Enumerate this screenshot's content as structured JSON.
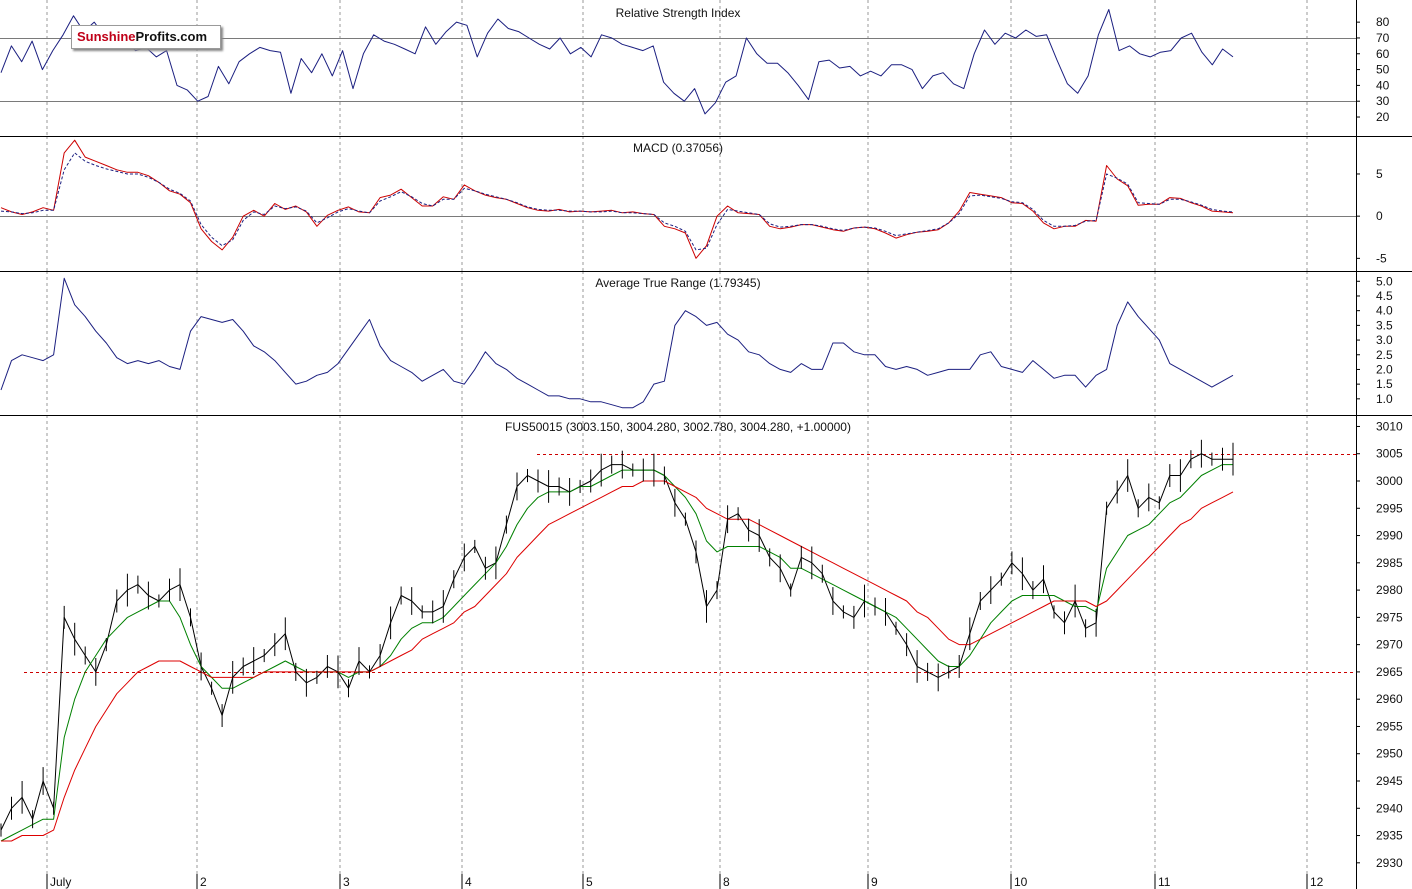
{
  "logo": {
    "part1": "Sunshine",
    "part2": "Profits.com"
  },
  "chart_data": [
    {
      "type": "line",
      "title": "Relative Strength Index",
      "x_labels": [
        "July",
        "2",
        "3",
        "4",
        "5",
        "8",
        "9",
        "10",
        "11",
        "12"
      ],
      "yticks": [
        80,
        70,
        60,
        50,
        40,
        30,
        20
      ],
      "ylim": [
        8,
        94
      ],
      "reference_lines": [
        70,
        30
      ],
      "series": [
        {
          "color": "#1b1f80",
          "values": [
            48,
            65,
            55,
            68,
            50,
            62,
            72,
            84,
            74,
            80,
            71,
            72,
            68,
            62,
            64,
            58,
            62,
            40,
            37,
            30,
            33,
            52,
            41,
            55,
            60,
            64,
            62,
            61,
            35,
            57,
            48,
            60,
            46,
            62,
            38,
            60,
            72,
            68,
            66,
            63,
            60,
            77,
            66,
            74,
            80,
            78,
            58,
            73,
            82,
            76,
            74,
            70,
            66,
            63,
            70,
            60,
            64,
            58,
            72,
            70,
            66,
            64,
            62,
            65,
            42,
            35,
            30,
            38,
            22,
            29,
            42,
            46,
            70,
            60,
            54,
            54,
            48,
            40,
            31,
            55,
            56,
            51,
            52,
            46,
            49,
            46,
            53,
            53,
            50,
            38,
            46,
            48,
            41,
            38,
            60,
            75,
            66,
            73,
            70,
            75,
            71,
            72,
            56,
            41,
            35,
            46,
            72,
            88,
            62,
            65,
            60,
            58,
            61,
            62,
            70,
            73,
            61,
            53,
            63,
            58
          ]
        }
      ]
    },
    {
      "type": "line",
      "title": "MACD (0.37056)",
      "x_labels": [
        "July",
        "2",
        "3",
        "4",
        "5",
        "8",
        "9",
        "10",
        "11",
        "12"
      ],
      "yticks": [
        5,
        0,
        -5
      ],
      "ylim": [
        -6.5,
        9.5
      ],
      "reference_lines": [
        0
      ],
      "series": [
        {
          "color": "#cc0000",
          "values": [
            1.0,
            0.5,
            0.2,
            0.5,
            1.0,
            0.7,
            7.5,
            9.0,
            7.0,
            6.5,
            6.0,
            5.5,
            5.2,
            5.2,
            4.8,
            4.0,
            3.0,
            2.6,
            1.6,
            -1.5,
            -3.0,
            -4.0,
            -2.5,
            0.0,
            0.7,
            0.0,
            1.5,
            0.8,
            1.2,
            0.5,
            -1.2,
            0.1,
            0.7,
            1.1,
            0.5,
            0.4,
            2.2,
            2.5,
            3.2,
            2.2,
            1.2,
            1.2,
            2.3,
            2.0,
            3.7,
            3.0,
            2.5,
            2.2,
            2.0,
            1.5,
            1.0,
            0.7,
            0.6,
            0.8,
            0.5,
            0.6,
            0.5,
            0.6,
            0.7,
            0.4,
            0.5,
            0.3,
            0.2,
            -1.2,
            -1.5,
            -2.0,
            -5.0,
            -3.5,
            0.0,
            1.2,
            0.4,
            0.3,
            0.2,
            -1.2,
            -1.5,
            -1.3,
            -1.0,
            -1.0,
            -1.3,
            -1.6,
            -1.8,
            -1.4,
            -1.3,
            -1.5,
            -2.0,
            -2.6,
            -2.2,
            -1.9,
            -1.8,
            -1.6,
            -0.8,
            0.6,
            2.8,
            2.6,
            2.4,
            2.2,
            1.6,
            1.5,
            0.6,
            -0.8,
            -1.5,
            -1.2,
            -1.2,
            -0.5,
            -0.6,
            6.0,
            4.4,
            3.6,
            1.3,
            1.4,
            1.4,
            2.2,
            2.1,
            1.6,
            1.2,
            0.6,
            0.5,
            0.4
          ]
        },
        {
          "color": "#1b1f80",
          "values": [
            0.6,
            0.5,
            0.3,
            0.4,
            0.7,
            0.7,
            5.5,
            7.5,
            6.5,
            6.0,
            5.6,
            5.3,
            5.0,
            5.0,
            4.6,
            4.0,
            3.2,
            2.7,
            1.8,
            -1.0,
            -2.5,
            -3.5,
            -2.8,
            -0.5,
            0.5,
            0.2,
            1.2,
            0.9,
            1.1,
            0.6,
            -0.8,
            -0.2,
            0.5,
            0.9,
            0.6,
            0.4,
            1.8,
            2.3,
            2.9,
            2.3,
            1.5,
            1.2,
            2.0,
            2.0,
            3.3,
            3.0,
            2.6,
            2.3,
            2.0,
            1.6,
            1.1,
            0.8,
            0.7,
            0.7,
            0.6,
            0.6,
            0.5,
            0.5,
            0.6,
            0.4,
            0.4,
            0.3,
            0.2,
            -0.8,
            -1.2,
            -1.8,
            -4.0,
            -3.8,
            -1.0,
            0.8,
            0.6,
            0.4,
            0.2,
            -0.9,
            -1.3,
            -1.2,
            -1.0,
            -1.0,
            -1.2,
            -1.5,
            -1.7,
            -1.4,
            -1.3,
            -1.4,
            -1.8,
            -2.3,
            -2.1,
            -1.9,
            -1.7,
            -1.5,
            -0.8,
            0.3,
            2.4,
            2.5,
            2.3,
            2.1,
            1.7,
            1.6,
            0.8,
            -0.5,
            -1.2,
            -1.2,
            -1.1,
            -0.6,
            -0.5,
            5.0,
            4.5,
            3.8,
            1.6,
            1.5,
            1.4,
            2.0,
            2.0,
            1.7,
            1.3,
            0.8,
            0.6,
            0.5
          ]
        }
      ]
    },
    {
      "type": "line",
      "title": "Average True Range (1.79345)",
      "x_labels": [
        "July",
        "2",
        "3",
        "4",
        "5",
        "8",
        "9",
        "10",
        "11",
        "12"
      ],
      "yticks": [
        5.0,
        4.5,
        4.0,
        3.5,
        3.0,
        2.5,
        2.0,
        1.5,
        1.0
      ],
      "ylim": [
        0.45,
        5.35
      ],
      "series": [
        {
          "color": "#1b1f80",
          "values": [
            1.3,
            2.3,
            2.5,
            2.4,
            2.3,
            2.5,
            5.1,
            4.2,
            3.8,
            3.3,
            2.9,
            2.4,
            2.2,
            2.3,
            2.2,
            2.3,
            2.1,
            2.0,
            3.3,
            3.8,
            3.7,
            3.6,
            3.7,
            3.3,
            2.8,
            2.6,
            2.3,
            1.9,
            1.5,
            1.6,
            1.8,
            1.9,
            2.2,
            2.7,
            3.2,
            3.7,
            2.8,
            2.3,
            2.1,
            1.9,
            1.6,
            1.8,
            2.0,
            1.6,
            1.5,
            2.0,
            2.6,
            2.2,
            2.0,
            1.7,
            1.5,
            1.3,
            1.1,
            1.1,
            1.0,
            1.0,
            0.9,
            0.9,
            0.8,
            0.7,
            0.7,
            0.9,
            1.5,
            1.6,
            3.5,
            4.0,
            3.8,
            3.5,
            3.6,
            3.2,
            3.0,
            2.6,
            2.5,
            2.2,
            2.0,
            1.9,
            2.2,
            2.0,
            2.0,
            2.9,
            2.9,
            2.6,
            2.5,
            2.5,
            2.1,
            2.0,
            2.1,
            2.0,
            1.8,
            1.9,
            2.0,
            2.0,
            2.0,
            2.5,
            2.6,
            2.1,
            2.0,
            1.9,
            2.3,
            2.0,
            1.7,
            1.8,
            1.8,
            1.4,
            1.8,
            2.0,
            3.5,
            4.3,
            3.8,
            3.4,
            3.0,
            2.2,
            2.0,
            1.8,
            1.6,
            1.4,
            1.6,
            1.8
          ]
        }
      ]
    },
    {
      "type": "line",
      "title": "FUS50015 (3003.150, 3004.280, 3002.780, 3004.280, +1.00000)",
      "x_labels": [
        "July",
        "2",
        "3",
        "4",
        "5",
        "8",
        "9",
        "10",
        "11",
        "12"
      ],
      "yticks": [
        3010,
        3005,
        3000,
        2995,
        2990,
        2985,
        2980,
        2975,
        2970,
        2965,
        2960,
        2955,
        2950,
        2945,
        2940,
        2935,
        2930
      ],
      "ylim": [
        2925.2,
        3012.1
      ],
      "reference_lines": [
        3005,
        2965
      ],
      "series": [
        {
          "color": "#000000",
          "values": [
            2936,
            2940,
            2942,
            2938,
            2945,
            2940,
            2975,
            2971,
            2968,
            2965,
            2970,
            2978,
            2980,
            2981,
            2979,
            2978,
            2980,
            2981,
            2975,
            2966,
            2962,
            2957,
            2964,
            2966,
            2967,
            2968,
            2970,
            2972,
            2965,
            2963,
            2964,
            2966,
            2965,
            2962,
            2967,
            2965,
            2968,
            2974,
            2979,
            2978,
            2976,
            2976,
            2977,
            2982,
            2986,
            2988,
            2984,
            2985,
            2992,
            2999,
            3001,
            3000,
            2999,
            2999,
            2998,
            2999,
            3000,
            3002,
            3003,
            3003,
            3002,
            3002,
            3002,
            3001,
            2996,
            2993,
            2987,
            2977,
            2980,
            2993,
            2994,
            2991,
            2990,
            2986,
            2984,
            2980,
            2986,
            2985,
            2983,
            2978,
            2976,
            2975,
            2978,
            2977,
            2976,
            2973,
            2970,
            2966,
            2965,
            2964,
            2965,
            2966,
            2972,
            2978,
            2980,
            2982,
            2985,
            2983,
            2980,
            2982,
            2976,
            2974,
            2978,
            2973,
            2974,
            2995,
            2998,
            3001,
            2995,
            2997,
            2996,
            3001,
            3001,
            3004,
            3005,
            3004,
            3004,
            3004
          ]
        },
        {
          "color": "#008000",
          "values": [
            2934,
            2935,
            2936,
            2937,
            2938,
            2938,
            2953,
            2960,
            2965,
            2968,
            2971,
            2973,
            2975,
            2976,
            2977,
            2978,
            2978,
            2975,
            2970,
            2966,
            2964,
            2962,
            2962,
            2963,
            2964,
            2965,
            2966,
            2967,
            2966,
            2965,
            2965,
            2965,
            2965,
            2964,
            2965,
            2965,
            2966,
            2968,
            2971,
            2973,
            2974,
            2974,
            2975,
            2977,
            2979,
            2981,
            2983,
            2985,
            2988,
            2992,
            2995,
            2997,
            2998,
            2998,
            2998,
            2999,
            2999,
            3000,
            3001,
            3002,
            3002,
            3002,
            3002,
            3001,
            2999,
            2997,
            2994,
            2989,
            2987,
            2988,
            2988,
            2988,
            2988,
            2987,
            2986,
            2984,
            2984,
            2983,
            2982,
            2981,
            2980,
            2979,
            2978,
            2977,
            2976,
            2975,
            2973,
            2971,
            2969,
            2967,
            2966,
            2966,
            2968,
            2971,
            2974,
            2976,
            2978,
            2979,
            2979,
            2979,
            2979,
            2978,
            2977,
            2977,
            2976,
            2984,
            2987,
            2990,
            2991,
            2992,
            2994,
            2996,
            2997,
            2999,
            3001,
            3002,
            3003,
            3003
          ]
        },
        {
          "color": "#dd0000",
          "values": [
            2934,
            2934,
            2935,
            2935,
            2935,
            2936,
            2942,
            2947,
            2951,
            2955,
            2958,
            2961,
            2963,
            2965,
            2966,
            2967,
            2967,
            2967,
            2966,
            2965,
            2964,
            2964,
            2964,
            2964,
            2964,
            2965,
            2965,
            2965,
            2965,
            2965,
            2965,
            2965,
            2965,
            2965,
            2965,
            2965,
            2966,
            2967,
            2968,
            2969,
            2971,
            2972,
            2973,
            2974,
            2976,
            2977,
            2979,
            2981,
            2983,
            2986,
            2988,
            2990,
            2992,
            2993,
            2994,
            2995,
            2996,
            2997,
            2998,
            2999,
            2999,
            3000,
            3000,
            3000,
            2999,
            2998,
            2997,
            2995,
            2994,
            2993,
            2993,
            2993,
            2992,
            2991,
            2990,
            2989,
            2988,
            2987,
            2986,
            2985,
            2984,
            2983,
            2982,
            2981,
            2980,
            2979,
            2978,
            2976,
            2975,
            2973,
            2971,
            2970,
            2970,
            2971,
            2972,
            2973,
            2974,
            2975,
            2976,
            2977,
            2978,
            2978,
            2978,
            2978,
            2977,
            2978,
            2980,
            2982,
            2984,
            2986,
            2988,
            2990,
            2992,
            2993,
            2995,
            2996,
            2997,
            2998
          ]
        }
      ]
    }
  ]
}
